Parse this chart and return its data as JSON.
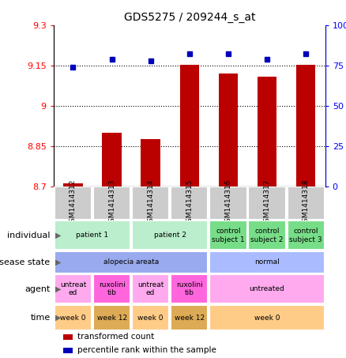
{
  "title": "GDS5275 / 209244_s_at",
  "samples": [
    "GSM1414312",
    "GSM1414313",
    "GSM1414314",
    "GSM1414315",
    "GSM1414316",
    "GSM1414317",
    "GSM1414318"
  ],
  "transformed_counts": [
    8.71,
    8.9,
    8.875,
    9.152,
    9.12,
    9.107,
    9.152
  ],
  "percentile_ranks": [
    74,
    79,
    78,
    82,
    82,
    79,
    82
  ],
  "ylim_left": [
    8.7,
    9.3
  ],
  "ylim_right": [
    0,
    100
  ],
  "yticks_left": [
    8.7,
    8.85,
    9.0,
    9.15,
    9.3
  ],
  "yticks_right": [
    0,
    25,
    50,
    75,
    100
  ],
  "ytick_labels_left": [
    "8.7",
    "8.85",
    "9",
    "9.15",
    "9.3"
  ],
  "ytick_labels_right": [
    "0",
    "25",
    "50",
    "75",
    "100%"
  ],
  "hlines": [
    8.85,
    9.0,
    9.15
  ],
  "bar_color": "#bb0000",
  "dot_color": "#0000bb",
  "sample_col_color": "#cccccc",
  "annotation_rows": [
    {
      "key": "individual",
      "label": "individual",
      "groups": [
        {
          "span": [
            0,
            1
          ],
          "text": "patient 1",
          "color": "#bbeecc"
        },
        {
          "span": [
            2,
            3
          ],
          "text": "patient 2",
          "color": "#bbeecc"
        },
        {
          "span": [
            4,
            4
          ],
          "text": "control\nsubject 1",
          "color": "#77dd88"
        },
        {
          "span": [
            5,
            5
          ],
          "text": "control\nsubject 2",
          "color": "#77dd88"
        },
        {
          "span": [
            6,
            6
          ],
          "text": "control\nsubject 3",
          "color": "#77dd88"
        }
      ]
    },
    {
      "key": "disease_state",
      "label": "disease state",
      "groups": [
        {
          "span": [
            0,
            3
          ],
          "text": "alopecia areata",
          "color": "#99aaee"
        },
        {
          "span": [
            4,
            6
          ],
          "text": "normal",
          "color": "#aabbff"
        }
      ]
    },
    {
      "key": "agent",
      "label": "agent",
      "groups": [
        {
          "span": [
            0,
            0
          ],
          "text": "untreat\ned",
          "color": "#ffaaee"
        },
        {
          "span": [
            1,
            1
          ],
          "text": "ruxolini\ntib",
          "color": "#ff66dd"
        },
        {
          "span": [
            2,
            2
          ],
          "text": "untreat\ned",
          "color": "#ffaaee"
        },
        {
          "span": [
            3,
            3
          ],
          "text": "ruxolini\ntib",
          "color": "#ff66dd"
        },
        {
          "span": [
            4,
            6
          ],
          "text": "untreated",
          "color": "#ffaaee"
        }
      ]
    },
    {
      "key": "time",
      "label": "time",
      "groups": [
        {
          "span": [
            0,
            0
          ],
          "text": "week 0",
          "color": "#ffcc88"
        },
        {
          "span": [
            1,
            1
          ],
          "text": "week 12",
          "color": "#ddaa55"
        },
        {
          "span": [
            2,
            2
          ],
          "text": "week 0",
          "color": "#ffcc88"
        },
        {
          "span": [
            3,
            3
          ],
          "text": "week 12",
          "color": "#ddaa55"
        },
        {
          "span": [
            4,
            6
          ],
          "text": "week 0",
          "color": "#ffcc88"
        }
      ]
    }
  ],
  "legend_items": [
    {
      "color": "#bb0000",
      "label": "transformed count"
    },
    {
      "color": "#0000bb",
      "label": "percentile rank within the sample"
    }
  ]
}
